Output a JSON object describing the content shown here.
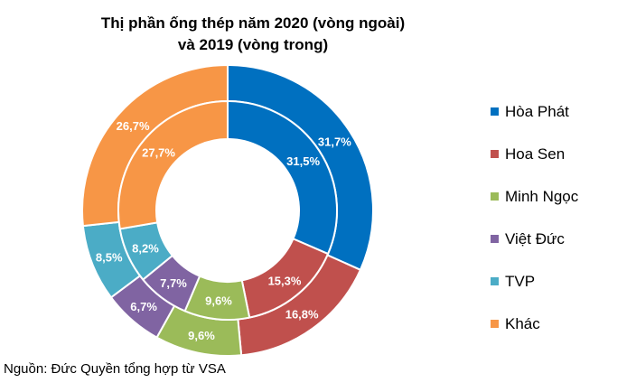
{
  "chart_data": {
    "type": "pie",
    "title_line1": "Thị phần ống thép năm 2020 (vòng ngoài)",
    "title_line2": "và 2019 (vòng trong)",
    "categories": [
      "Hòa Phát",
      "Hoa Sen",
      "Minh Ngọc",
      "Việt Đức",
      "TVP",
      "Khác"
    ],
    "colors": [
      "#0070c0",
      "#c0504d",
      "#9bbb59",
      "#8064a2",
      "#4bacc6",
      "#f79646"
    ],
    "series": [
      {
        "ring": "outer",
        "labels": [
          "31,7%",
          "16,8%",
          "9,6%",
          "6,7%",
          "8,5%",
          "26,7%"
        ],
        "values": [
          31.7,
          16.8,
          9.6,
          6.7,
          8.5,
          26.7
        ]
      },
      {
        "ring": "inner",
        "labels": [
          "31,5%",
          "15,3%",
          "9,6%",
          "7,7%",
          "8,2%",
          "27,7%"
        ],
        "values": [
          31.5,
          15.3,
          9.6,
          7.7,
          8.2,
          27.7
        ]
      }
    ],
    "legend_position": "right"
  },
  "source_note": "Nguồn: Đức Quyền tổng hợp từ VSA"
}
